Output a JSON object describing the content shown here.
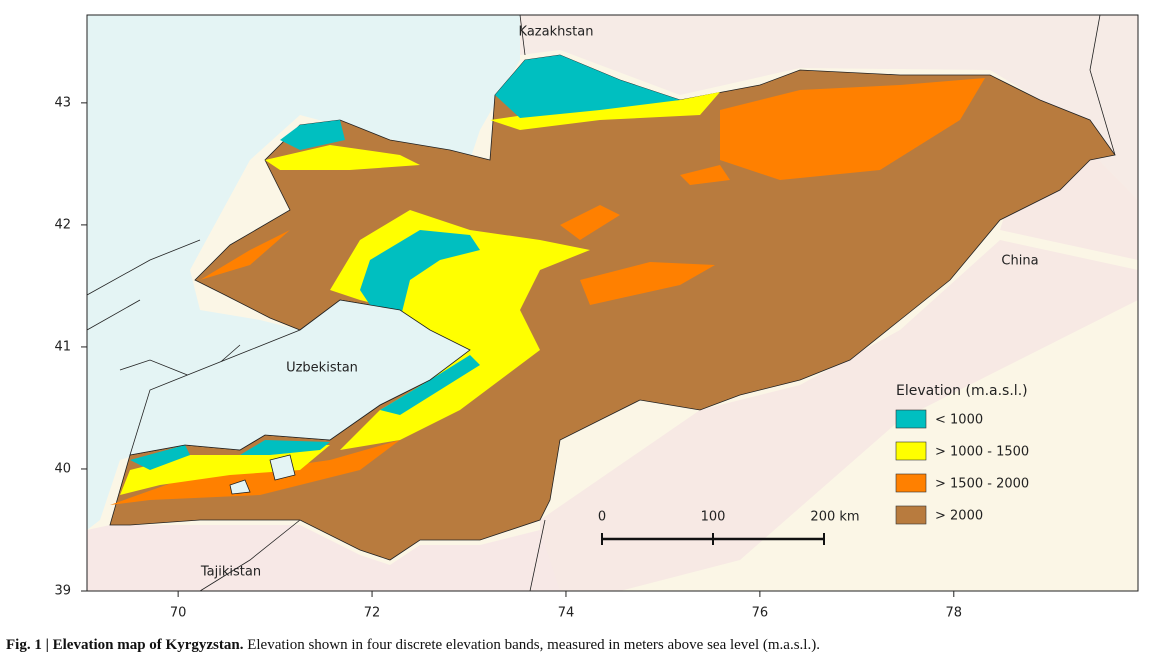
{
  "map": {
    "country_labels": [
      "Kazakhstan",
      "China",
      "Uzbekistan",
      "Tajikistan"
    ],
    "xlim": [
      69.06,
      79.9
    ],
    "ylim": [
      39,
      43.72
    ],
    "xticks": [
      70,
      72,
      74,
      76,
      78
    ],
    "yticks": [
      39,
      40,
      41,
      42,
      43
    ],
    "legend": {
      "title": "Elevation (m.a.s.l.)",
      "items": [
        {
          "label": "< 1000",
          "color": "#00bfc0"
        },
        {
          "label": "> 1000 - 1500",
          "color": "#ffff00"
        },
        {
          "label": "> 1500 - 2000",
          "color": "#ff8000"
        },
        {
          "label": "> 2000",
          "color": "#b87b3e"
        }
      ]
    },
    "scale_bar": {
      "labels": [
        "0",
        "100",
        "200 km"
      ]
    }
  },
  "caption": {
    "label": "Fig. 1 | Elevation map of Kyrgyzstan.",
    "text": "Elevation shown in four discrete elevation bands, measured in meters above sea level (m.a.s.l.)."
  }
}
